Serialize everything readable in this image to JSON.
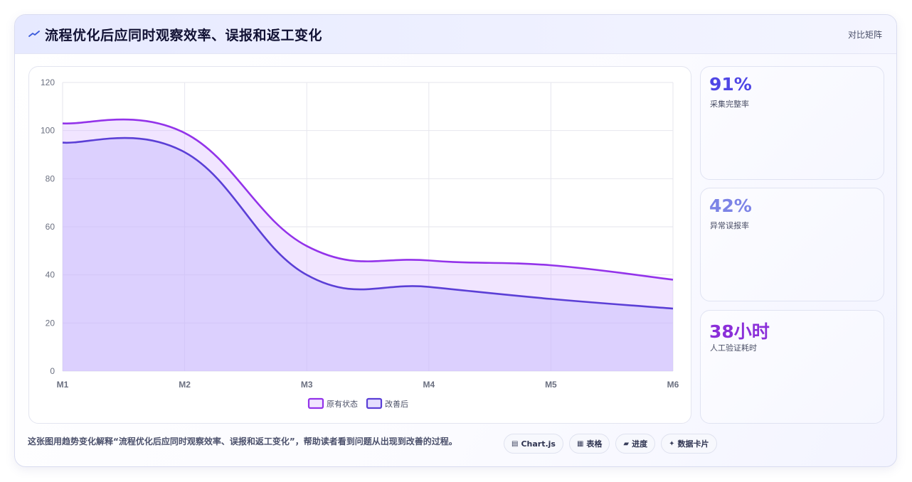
{
  "header": {
    "title": "流程优化后应同时观察效率、误报和返工变化",
    "badge": "对比矩阵",
    "icon": "trend-line-icon"
  },
  "stats": [
    {
      "value": "91%",
      "label": "采集完整率",
      "color": "#4f46e5"
    },
    {
      "value": "42%",
      "label": "异常误报率",
      "color": "#7c83e6"
    },
    {
      "value": "38小时",
      "label": "人工验证耗时",
      "color": "#8b2fd9"
    }
  ],
  "footer": {
    "caption": "这张图用趋势变化解释“流程优化后应同时观察效率、误报和返工变化”，帮助读者看到问题从出现到改善的过程。",
    "pills": [
      {
        "icon": "chart-icon",
        "glyph": "▤",
        "label": "Chart.js"
      },
      {
        "icon": "table-icon",
        "glyph": "▦",
        "label": "表格"
      },
      {
        "icon": "progress-icon",
        "glyph": "▰",
        "label": "进度"
      },
      {
        "icon": "card-icon",
        "glyph": "✦",
        "label": "数据卡片"
      }
    ]
  },
  "chart_data": {
    "type": "area",
    "categories": [
      "M1",
      "M2",
      "M3",
      "M4",
      "M5",
      "M6"
    ],
    "ylim": [
      0,
      120
    ],
    "yticks": [
      0,
      20,
      40,
      60,
      80,
      100,
      120
    ],
    "grid": true,
    "legend": "bottom",
    "series": [
      {
        "name": "原有状态",
        "values": [
          103,
          99,
          52,
          46,
          44,
          38
        ],
        "color": "#9333ea",
        "fill": "rgba(216,180,254,0.35)"
      },
      {
        "name": "改善后",
        "values": [
          95,
          91,
          40,
          35,
          30,
          26
        ],
        "color": "#5b3fd6",
        "fill": "rgba(196,181,253,0.45)"
      }
    ]
  }
}
